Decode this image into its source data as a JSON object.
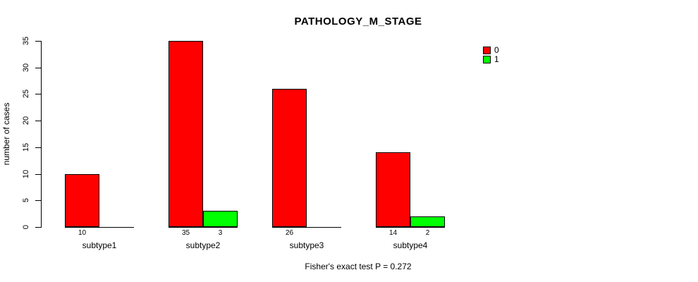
{
  "chart_data": {
    "type": "bar",
    "title": "PATHOLOGY_M_STAGE",
    "ylabel": "number of cases",
    "xlabel": "",
    "categories": [
      "subtype1",
      "subtype2",
      "subtype3",
      "subtype4"
    ],
    "series": [
      {
        "name": "0",
        "color": "#ff0000",
        "values": [
          10,
          35,
          26,
          14
        ]
      },
      {
        "name": "1",
        "color": "#00ff00",
        "values": [
          0,
          3,
          0,
          2
        ]
      }
    ],
    "bar_value_labels": [
      [
        "10",
        "",
        "35",
        "3",
        "26",
        "",
        "14",
        "2"
      ]
    ],
    "yticks": [
      0,
      5,
      10,
      15,
      20,
      25,
      30,
      35
    ],
    "ylim": [
      0,
      35
    ],
    "grid": false,
    "legend_position": "top-right",
    "annotation": "Fisher's exact test P = 0.272"
  },
  "colors": {
    "background": "#ffffff",
    "axis": "#000000",
    "text": "#000000",
    "series0": "#ff0000",
    "series1": "#00ff00"
  }
}
